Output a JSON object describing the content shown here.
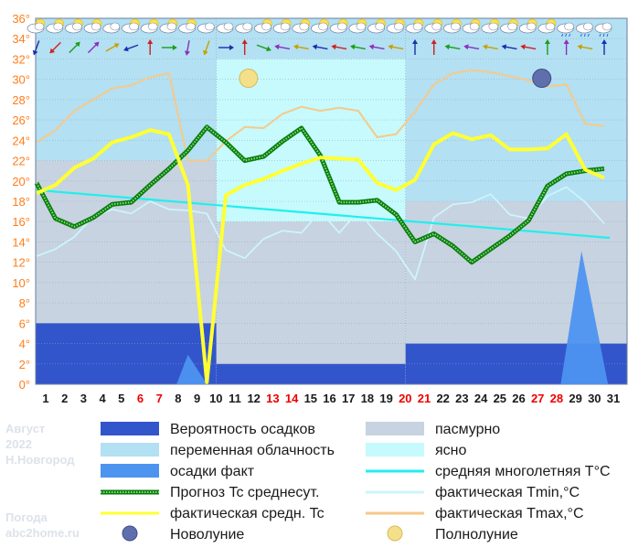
{
  "watermark": {
    "month": "Август",
    "year": "2022",
    "city": "Н.Новгород",
    "site_label": "Погода",
    "site": "abc2home.ru"
  },
  "legend": [
    {
      "key": "precip_prob",
      "label": "Вероятность осадков",
      "color": "#3355cc",
      "kind": "box"
    },
    {
      "key": "overcast",
      "label": "пасмурно",
      "color": "#c7d3e0",
      "kind": "box"
    },
    {
      "key": "partly",
      "label": "переменная облачность",
      "color": "#b3e0f2",
      "kind": "box"
    },
    {
      "key": "clear",
      "label": "ясно",
      "color": "#c6fafc",
      "kind": "box"
    },
    {
      "key": "precip_fact",
      "label": "осадки факт",
      "color": "#4d94f0",
      "kind": "box"
    },
    {
      "key": "norm",
      "label": "средняя многолетняя T°C",
      "color": "#22eeee",
      "kind": "line"
    },
    {
      "key": "forecast",
      "label": "Прогноз Tc среднесут.",
      "color": "#008800",
      "kind": "dotted"
    },
    {
      "key": "tmin",
      "label": "фактическая Tmin,°C",
      "color": "#cdf4fc",
      "kind": "line"
    },
    {
      "key": "tavg",
      "label": "фактическая средн. Tc",
      "color": "#ffff33",
      "kind": "line"
    },
    {
      "key": "tmax",
      "label": "фактическая Tmax,°C",
      "color": "#f6c98a",
      "kind": "line"
    },
    {
      "key": "newmoon",
      "label": "Новолуние",
      "color": "#5566aa",
      "kind": "newmoon"
    },
    {
      "key": "fullmoon",
      "label": "Полнолуние",
      "color": "#f2d77a",
      "kind": "fullmoon"
    }
  ],
  "chart_data": {
    "type": "line",
    "x": [
      1,
      2,
      3,
      4,
      5,
      6,
      7,
      8,
      9,
      10,
      11,
      12,
      13,
      14,
      15,
      16,
      17,
      18,
      19,
      20,
      21,
      22,
      23,
      24,
      25,
      26,
      27,
      28,
      29,
      30,
      31
    ],
    "x_labels": [
      "1",
      "2",
      "3",
      "4",
      "5",
      "6",
      "7",
      "8",
      "9",
      "10",
      "11",
      "12",
      "13",
      "14",
      "15",
      "16",
      "17",
      "18",
      "19",
      "20",
      "21",
      "22",
      "23",
      "24",
      "25",
      "26",
      "27",
      "28",
      "29",
      "30",
      "31"
    ],
    "weekend_days": [
      6,
      7,
      13,
      14,
      20,
      21,
      27,
      28
    ],
    "weekend_color": "#ee0000",
    "yticks": [
      "0°",
      "2°",
      "4°",
      "6°",
      "8°",
      "10°",
      "12°",
      "14°",
      "16°",
      "18°",
      "20°",
      "22°",
      "24°",
      "26°",
      "28°",
      "30°",
      "32°",
      "34°",
      "36°"
    ],
    "ylim": [
      0,
      36
    ],
    "grid": true,
    "xlabel": "",
    "ylabel": "",
    "series": [
      {
        "key": "tmax",
        "name": "фактическая Tmax,°C",
        "color": "#f6c98a",
        "x": [
          1,
          2,
          3,
          4,
          5,
          6,
          7,
          8,
          9,
          10,
          11,
          12,
          13,
          14,
          15,
          16,
          17,
          18,
          19,
          20,
          21,
          22,
          23,
          24,
          25,
          26,
          27,
          28,
          29,
          30,
          31
        ],
        "values": [
          23.8,
          25,
          26.9,
          28,
          29.1,
          29.4,
          30.2,
          30.6,
          22,
          22,
          23.9,
          25.3,
          25.2,
          26.6,
          27.3,
          26.9,
          27.2,
          26.9,
          24.3,
          24.6,
          26.8,
          29.5,
          30.6,
          30.9,
          30.7,
          30.3,
          29.9,
          29.3,
          29.5,
          25.6,
          25.4
        ]
      },
      {
        "key": "tmin",
        "name": "фактическая Tmin,°C",
        "color": "#cdf4fc",
        "x": [
          1,
          2,
          3,
          4,
          5,
          6,
          7,
          8,
          9,
          10,
          11,
          12,
          13,
          14,
          15,
          16,
          17,
          18,
          19,
          20,
          21,
          22,
          23,
          24,
          25,
          26,
          27,
          28,
          29,
          30,
          31
        ],
        "values": [
          12.6,
          13.3,
          14.5,
          16.5,
          17.2,
          16.8,
          18,
          17.2,
          17.1,
          16.8,
          13.2,
          12.4,
          14.3,
          15.1,
          14.9,
          17,
          14.9,
          17,
          14.8,
          13.1,
          10.3,
          16.4,
          17.7,
          17.9,
          18.7,
          16.7,
          16.3,
          18.5,
          19.4,
          17.9,
          15.8
        ]
      },
      {
        "key": "forecast",
        "name": "Прогноз Tc среднесут.",
        "color": "#008800",
        "x": [
          1,
          2,
          3,
          4,
          5,
          6,
          7,
          8,
          9,
          10,
          11,
          12,
          13,
          14,
          15,
          16,
          17,
          18,
          19,
          20,
          21,
          22,
          23,
          24,
          25,
          26,
          27,
          28,
          29,
          30,
          31
        ],
        "values": [
          19.8,
          16.3,
          15.5,
          16.4,
          17.7,
          17.9,
          19.6,
          21.2,
          23,
          25.3,
          23.8,
          22,
          22.4,
          23.9,
          25.2,
          22.5,
          17.9,
          17.9,
          18.1,
          16.7,
          14,
          14.8,
          13.6,
          12,
          13.3,
          14.6,
          16.1,
          19.5,
          20.7,
          21,
          21.2
        ]
      },
      {
        "key": "tavg",
        "name": "фактическая средн. Tc",
        "color": "#ffff33",
        "x": [
          1,
          2,
          3,
          4,
          5,
          6,
          7,
          8,
          9,
          10,
          11,
          12,
          13,
          14,
          15,
          16,
          17,
          18,
          19,
          20,
          21,
          22,
          23,
          24,
          25,
          26,
          27,
          28,
          29,
          30,
          31
        ],
        "values": [
          18.8,
          19.6,
          21.3,
          22.2,
          23.8,
          24.3,
          25,
          24.6,
          19.6,
          0.2,
          18.6,
          19.6,
          20.2,
          21,
          21.7,
          22.3,
          22.2,
          22.1,
          19.8,
          19.1,
          20.1,
          23.6,
          24.7,
          24.1,
          24.5,
          23.1,
          23.1,
          23.2,
          24.6,
          21.1,
          20.3
        ]
      },
      {
        "key": "norm",
        "name": "средняя многолетняя T°C",
        "color": "#22eeee",
        "x": [
          1,
          31
        ],
        "values": [
          19.1,
          14.4
        ]
      }
    ],
    "precip_fact": [
      {
        "peak_day": 9,
        "value": 2.9,
        "from": 8.4,
        "to": 10
      },
      {
        "peak_day": 29.8,
        "value": 13.1,
        "from": 28.7,
        "to": 31.2
      }
    ],
    "precip_prob": [
      {
        "from": 1,
        "to": 10.5,
        "value": 6
      },
      {
        "from": 10.5,
        "to": 20.5,
        "value": 2
      },
      {
        "from": 20.5,
        "to": 31,
        "value": 4
      }
    ],
    "cloud_cover": [
      {
        "from": 1,
        "to": 10.5,
        "value": 22,
        "type": "overcast"
      },
      {
        "from": 10.5,
        "to": 20.5,
        "value": 16,
        "type": "overcast"
      },
      {
        "from": 20.5,
        "to": 31,
        "value": 18,
        "type": "overcast"
      },
      {
        "from": 1,
        "to": 10.5,
        "value": 32,
        "type": "partly"
      },
      {
        "from": 10.5,
        "to": 20.5,
        "value": 32,
        "type": "clear"
      },
      {
        "from": 20.5,
        "to": 31,
        "value": 32,
        "type": "partly"
      }
    ],
    "moon_phases": [
      {
        "phase": "full",
        "day": 12.2,
        "temp": 30.1
      },
      {
        "phase": "new",
        "day": 27.7,
        "temp": 30.1
      }
    ],
    "weather_icons": [
      "partly",
      "partly",
      "partly",
      "partly",
      "cloudy",
      "partly",
      "partly",
      "partly",
      "partly",
      "cloudy",
      "cloudy",
      "cloudy",
      "partly",
      "partly",
      "partly",
      "partly",
      "partly",
      "partly",
      "partly",
      "partly",
      "partly",
      "partly",
      "partly",
      "partly",
      "partly",
      "partly",
      "partly",
      "partly",
      "rain",
      "rain",
      "rain"
    ],
    "wind_directions": [
      200,
      225,
      45,
      45,
      60,
      250,
      0,
      90,
      190,
      200,
      90,
      0,
      110,
      280,
      280,
      280,
      280,
      280,
      280,
      280,
      0,
      0,
      280,
      280,
      280,
      280,
      280,
      0,
      0,
      280,
      0
    ]
  }
}
